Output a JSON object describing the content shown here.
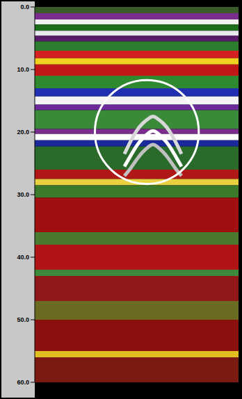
{
  "chart_data": {
    "type": "radargram",
    "ylim": [
      0,
      60
    ],
    "yticks": [
      {
        "value": 0,
        "label": "0.0"
      },
      {
        "value": 10,
        "label": "10.0"
      },
      {
        "value": 20,
        "label": "20.0"
      },
      {
        "value": 30,
        "label": "30.0"
      },
      {
        "value": 40,
        "label": "40.0"
      },
      {
        "value": 50,
        "label": "50.0"
      },
      {
        "value": 60,
        "label": "60.0"
      }
    ],
    "xlim": [
      0,
      100
    ],
    "tick_labels": "y",
    "grid": false,
    "bands": [
      [
        0,
        1
      ],
      [
        1,
        2
      ],
      [
        2,
        2.8
      ],
      [
        2.8,
        3.8
      ],
      [
        3.8,
        4.6
      ],
      [
        4.6,
        5.5
      ],
      [
        5.5,
        7
      ],
      [
        7,
        8.2
      ],
      [
        8.2,
        9.2
      ],
      [
        9.2,
        11
      ],
      [
        11,
        13
      ],
      [
        13,
        14.3
      ],
      [
        14.3,
        15.6
      ],
      [
        15.6,
        16.5
      ],
      [
        16.5,
        19.5
      ],
      [
        19.5,
        20.3
      ],
      [
        20.3,
        21.3
      ],
      [
        21.3,
        22.3
      ],
      [
        22.3,
        26
      ],
      [
        26,
        27.5
      ],
      [
        27.5,
        28.5
      ],
      [
        28.5,
        30.5
      ],
      [
        30.5,
        36
      ],
      [
        36,
        38
      ],
      [
        38,
        42
      ],
      [
        42,
        43
      ],
      [
        43,
        47
      ],
      [
        47,
        50
      ],
      [
        50,
        55
      ],
      [
        55,
        56
      ],
      [
        56,
        60
      ]
    ],
    "colors": [
      "#3a5a2a",
      "#7b2d8e",
      "#f2f2f2",
      "#1c6e1c",
      "#e8e8f0",
      "#5a1a6a",
      "#2e7d2e",
      "#d42020",
      "#f0d020",
      "#c01818",
      "#2f8a2f",
      "#2030b0",
      "#f4f4f4",
      "#6a2a9a",
      "#3a8a3a",
      "#7b2d8e",
      "#ffffff",
      "#1a2a9a",
      "#2a6a2a",
      "#b01818",
      "#e8d040",
      "#3a7a2a",
      "#a01010",
      "#4a7a30",
      "#b01414",
      "#3a8a3a",
      "#901818",
      "#6a6a20",
      "#8a1010",
      "#e0c020",
      "#7a1a10"
    ],
    "x": [
      44,
      47,
      50,
      53,
      56,
      58,
      60,
      63,
      66,
      69,
      72
    ],
    "series": [
      {
        "color": "#d8d8d8",
        "values": [
          23.5,
          21.5,
          19.8,
          18.6,
          17.8,
          17.5,
          17.8,
          18.6,
          19.8,
          21.5,
          23.5
        ]
      },
      {
        "color": "#ffffff",
        "values": [
          25.5,
          23.8,
          22.2,
          21,
          20.1,
          19.8,
          20.1,
          21,
          22.2,
          23.8,
          25.5
        ]
      },
      {
        "color": "#c0c0c0",
        "values": [
          27,
          25.8,
          24.4,
          23.2,
          22.3,
          22,
          22.3,
          23.2,
          24.4,
          25.8,
          27
        ]
      }
    ],
    "highlight": {
      "x": 55,
      "y": 20,
      "radius": 8.3
    }
  }
}
